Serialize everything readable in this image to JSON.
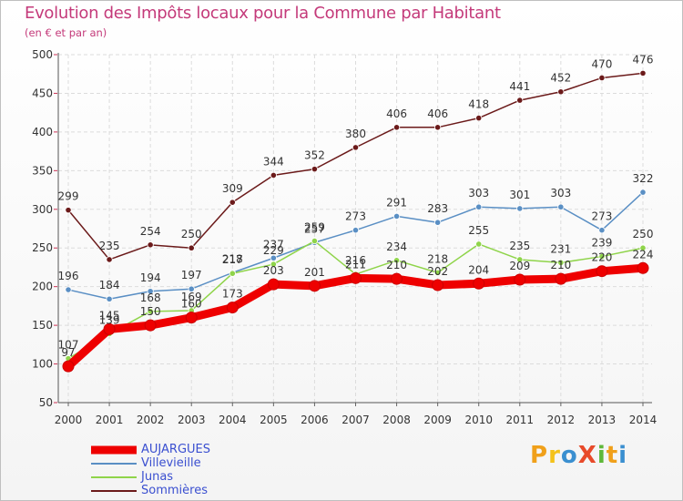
{
  "header": {
    "title": "Evolution des Impôts locaux pour la Commune par Habitant",
    "subtitle": "(en € et par an)"
  },
  "logo": {
    "text": "ProXiti",
    "colors": [
      "#f0a01a",
      "#f4c21a",
      "#3a8fd0",
      "#e84a2a",
      "#5fb83a",
      "#f0a01a",
      "#3a8fd0"
    ]
  },
  "chart_data": {
    "type": "line",
    "title": "Evolution des Impôts locaux pour la Commune par Habitant",
    "subtitle": "(en € et par an)",
    "xlabel": "",
    "ylabel": "",
    "categories": [
      "2000",
      "2001",
      "2002",
      "2003",
      "2004",
      "2005",
      "2006",
      "2007",
      "2008",
      "2009",
      "2010",
      "2011",
      "2012",
      "2013",
      "2014"
    ],
    "ylim": [
      50,
      500
    ],
    "yticks": [
      50,
      100,
      150,
      200,
      250,
      300,
      350,
      400,
      450,
      500
    ],
    "grid": true,
    "series": [
      {
        "name": "Sommières",
        "color": "#6b1a1a",
        "values": [
          299,
          235,
          254,
          250,
          309,
          344,
          352,
          380,
          406,
          406,
          418,
          441,
          452,
          470,
          476
        ]
      },
      {
        "name": "Villevieille",
        "color": "#5a8fc4",
        "values": [
          196,
          184,
          194,
          197,
          218,
          237,
          257,
          273,
          291,
          283,
          303,
          301,
          303,
          273,
          322
        ]
      },
      {
        "name": "Junas",
        "color": "#8fd44a",
        "values": [
          107,
          139,
          168,
          169,
          217,
          229,
          259,
          216,
          234,
          218,
          255,
          235,
          231,
          239,
          250
        ]
      },
      {
        "name": "AUJARGUES",
        "color": "#ee0000",
        "values": [
          97,
          145,
          150,
          160,
          173,
          203,
          201,
          211,
          210,
          202,
          204,
          209,
          210,
          220,
          224
        ]
      }
    ],
    "legend": {
      "placement": "bottom-left",
      "order": [
        "AUJARGUES",
        "Villevieille",
        "Junas",
        "Sommières"
      ]
    }
  }
}
